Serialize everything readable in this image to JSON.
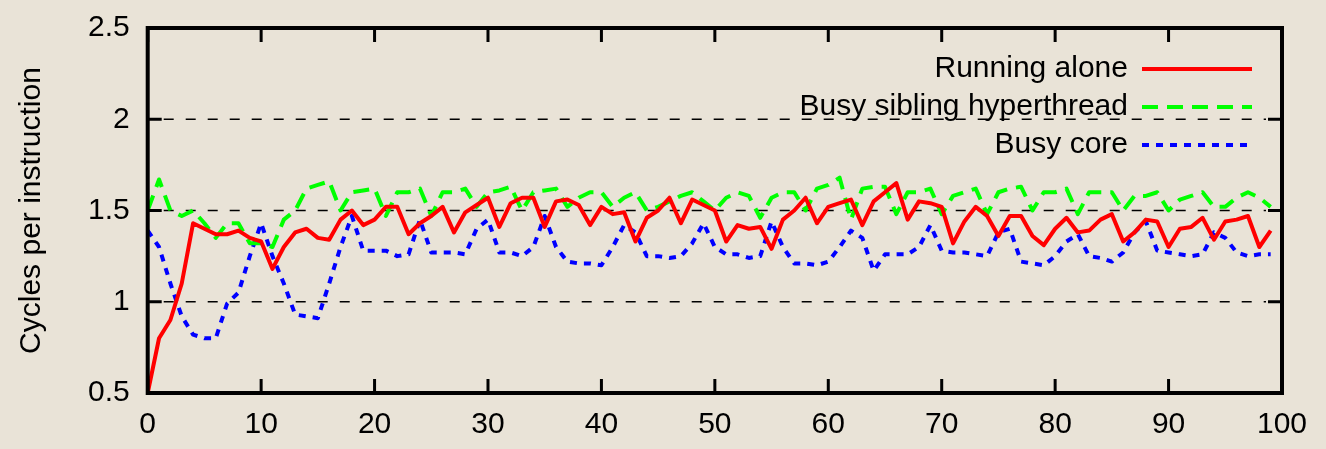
{
  "chart_data": {
    "type": "line",
    "ylabel": "Cycles per instruction",
    "xlim": [
      0,
      100
    ],
    "xticks": [
      0,
      10,
      20,
      30,
      40,
      50,
      60,
      70,
      80,
      90,
      100
    ],
    "ylim": [
      0.5,
      2.5
    ],
    "yticks": [
      0.5,
      1,
      1.5,
      2,
      2.5
    ],
    "grid": "y",
    "legend": "top right",
    "marker": "none",
    "x": [
      0,
      1,
      2,
      3,
      4,
      5,
      6,
      7,
      8,
      9,
      10,
      11,
      12,
      13,
      14,
      15,
      16,
      17,
      18,
      19,
      20,
      21,
      22,
      23,
      24,
      25,
      26,
      27,
      28,
      29,
      30,
      31,
      32,
      33,
      34,
      35,
      36,
      37,
      38,
      39,
      40,
      41,
      42,
      43,
      44,
      45,
      46,
      47,
      48,
      49,
      50,
      51,
      52,
      53,
      54,
      55,
      56,
      57,
      58,
      59,
      60,
      61,
      62,
      63,
      64,
      65,
      66,
      67,
      68,
      69,
      70,
      71,
      72,
      73,
      74,
      75,
      76,
      77,
      78,
      79,
      80,
      81,
      82,
      83,
      84,
      85,
      86,
      87,
      88,
      89,
      90,
      91,
      92,
      93,
      94,
      95,
      96,
      97,
      98,
      99
    ],
    "series": [
      {
        "name": "Running alone",
        "color": "#ff0000",
        "line_style": "solid",
        "values": [
          0.5,
          0.8,
          0.9,
          1.1,
          1.43,
          1.4,
          1.37,
          1.37,
          1.39,
          1.35,
          1.33,
          1.18,
          1.3,
          1.38,
          1.4,
          1.35,
          1.34,
          1.45,
          1.5,
          1.42,
          1.45,
          1.52,
          1.52,
          1.37,
          1.43,
          1.47,
          1.52,
          1.38,
          1.49,
          1.53,
          1.57,
          1.41,
          1.54,
          1.57,
          1.57,
          1.41,
          1.55,
          1.56,
          1.53,
          1.42,
          1.52,
          1.48,
          1.49,
          1.33,
          1.46,
          1.5,
          1.57,
          1.43,
          1.56,
          1.53,
          1.5,
          1.33,
          1.42,
          1.4,
          1.41,
          1.29,
          1.45,
          1.5,
          1.57,
          1.43,
          1.52,
          1.54,
          1.56,
          1.42,
          1.55,
          1.6,
          1.65,
          1.45,
          1.55,
          1.54,
          1.52,
          1.32,
          1.44,
          1.52,
          1.47,
          1.36,
          1.47,
          1.47,
          1.36,
          1.31,
          1.4,
          1.46,
          1.38,
          1.39,
          1.45,
          1.48,
          1.33,
          1.38,
          1.45,
          1.44,
          1.3,
          1.4,
          1.41,
          1.46,
          1.34,
          1.44,
          1.45,
          1.47,
          1.3,
          1.39
        ]
      },
      {
        "name": "Busy sibling hyperthread",
        "color": "#00ff00",
        "line_style": "dashed",
        "values": [
          1.5,
          1.67,
          1.5,
          1.47,
          1.5,
          1.43,
          1.35,
          1.43,
          1.43,
          1.32,
          1.32,
          1.3,
          1.45,
          1.5,
          1.62,
          1.64,
          1.66,
          1.5,
          1.6,
          1.61,
          1.62,
          1.47,
          1.6,
          1.6,
          1.62,
          1.47,
          1.6,
          1.6,
          1.62,
          1.52,
          1.6,
          1.61,
          1.63,
          1.5,
          1.6,
          1.61,
          1.62,
          1.52,
          1.57,
          1.6,
          1.6,
          1.52,
          1.57,
          1.6,
          1.5,
          1.52,
          1.55,
          1.58,
          1.6,
          1.55,
          1.5,
          1.57,
          1.6,
          1.58,
          1.46,
          1.57,
          1.6,
          1.6,
          1.5,
          1.62,
          1.64,
          1.68,
          1.45,
          1.62,
          1.63,
          1.63,
          1.48,
          1.6,
          1.6,
          1.62,
          1.48,
          1.58,
          1.6,
          1.62,
          1.48,
          1.6,
          1.62,
          1.63,
          1.5,
          1.6,
          1.6,
          1.62,
          1.48,
          1.6,
          1.6,
          1.6,
          1.5,
          1.58,
          1.58,
          1.6,
          1.5,
          1.56,
          1.58,
          1.6,
          1.52,
          1.52,
          1.57,
          1.6,
          1.57,
          1.52
        ]
      },
      {
        "name": "Busy core",
        "color": "#0000ff",
        "line_style": "dotted",
        "values": [
          1.39,
          1.3,
          1.1,
          0.92,
          0.82,
          0.8,
          0.8,
          0.99,
          1.05,
          1.25,
          1.43,
          1.25,
          1.1,
          0.93,
          0.92,
          0.91,
          1.1,
          1.3,
          1.47,
          1.28,
          1.28,
          1.28,
          1.25,
          1.26,
          1.45,
          1.27,
          1.27,
          1.27,
          1.26,
          1.4,
          1.45,
          1.27,
          1.27,
          1.25,
          1.3,
          1.47,
          1.3,
          1.22,
          1.21,
          1.21,
          1.2,
          1.3,
          1.42,
          1.38,
          1.25,
          1.25,
          1.24,
          1.25,
          1.32,
          1.43,
          1.3,
          1.26,
          1.26,
          1.24,
          1.25,
          1.44,
          1.3,
          1.21,
          1.21,
          1.2,
          1.22,
          1.3,
          1.39,
          1.35,
          1.17,
          1.26,
          1.26,
          1.26,
          1.3,
          1.42,
          1.28,
          1.27,
          1.27,
          1.26,
          1.25,
          1.38,
          1.4,
          1.22,
          1.21,
          1.2,
          1.25,
          1.33,
          1.37,
          1.25,
          1.24,
          1.22,
          1.27,
          1.38,
          1.44,
          1.28,
          1.27,
          1.26,
          1.25,
          1.26,
          1.38,
          1.35,
          1.27,
          1.25,
          1.26,
          1.26
        ]
      }
    ]
  }
}
